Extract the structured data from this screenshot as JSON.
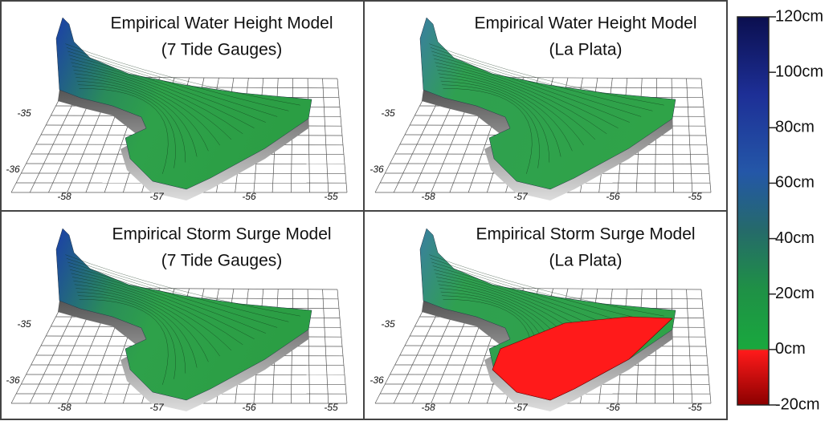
{
  "panels": [
    {
      "title": [
        "Empirical Water Height Model",
        "(7 Tide Gauges)"
      ],
      "xticks": [
        -58,
        -57,
        -56,
        -55
      ],
      "yticks": [
        -35,
        -36
      ]
    },
    {
      "title": [
        "Empirical Water Height Model",
        "(La Plata)"
      ],
      "xticks": [
        -58,
        -57,
        -56,
        -55
      ],
      "yticks": [
        -35,
        -36
      ]
    },
    {
      "title": [
        "Empirical Storm Surge Model",
        "(7 Tide Gauges)"
      ],
      "xticks": [
        -58,
        -57,
        -56,
        -55
      ],
      "yticks": [
        -35,
        -36
      ]
    },
    {
      "title": [
        "Empirical Storm Surge Model",
        "(La Plata)"
      ],
      "xticks": [
        -58,
        -57,
        -56,
        -55
      ],
      "yticks": [
        -35,
        -36
      ]
    }
  ],
  "colorbar": {
    "lim": [
      -20,
      120
    ],
    "ticks": [
      {
        "value": 120,
        "label": "120cm"
      },
      {
        "value": 100,
        "label": "100cm"
      },
      {
        "value": 80,
        "label": "80cm"
      },
      {
        "value": 60,
        "label": "60cm"
      },
      {
        "value": 40,
        "label": "40cm"
      },
      {
        "value": 20,
        "label": "20cm"
      },
      {
        "value": 0,
        "label": "0cm"
      },
      {
        "value": -20,
        "label": "-20cm"
      }
    ]
  }
}
